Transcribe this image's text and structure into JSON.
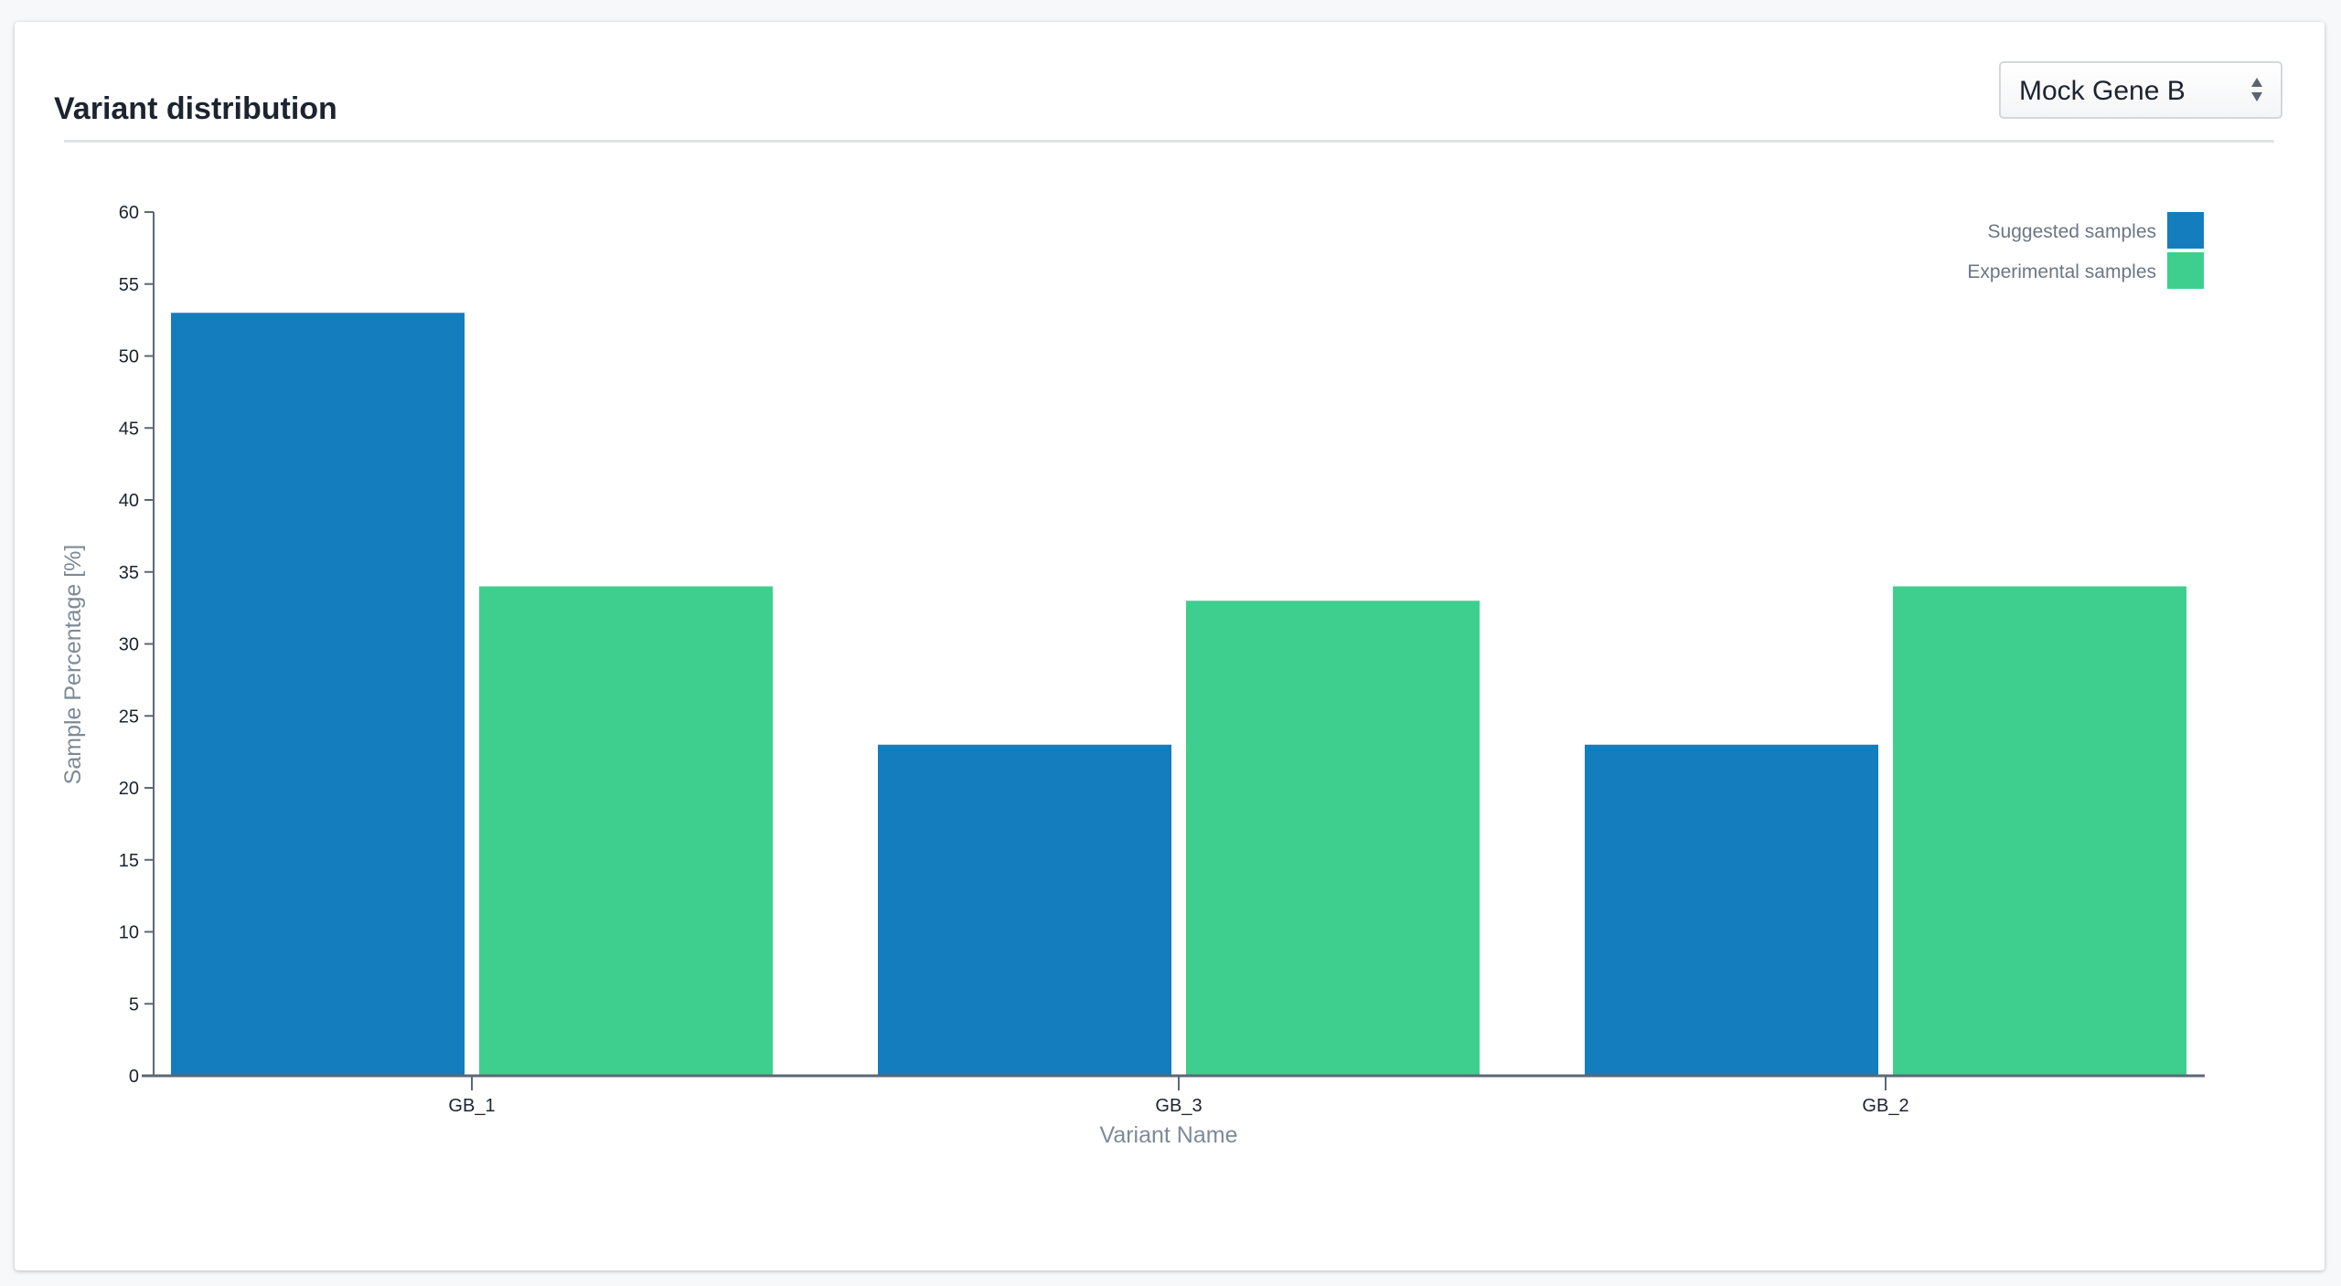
{
  "header": {
    "title": "Variant distribution"
  },
  "selector": {
    "value": "Mock Gene B",
    "icon": "sort-arrows-icon"
  },
  "chart_data": {
    "type": "bar",
    "title": "",
    "xlabel": "Variant Name",
    "ylabel": "Sample Percentage [%]",
    "ylim": [
      0,
      60
    ],
    "yticks": [
      "0",
      "5",
      "10",
      "15",
      "20",
      "25",
      "30",
      "35",
      "40",
      "45",
      "50",
      "55",
      "60"
    ],
    "categories": [
      "GB_1",
      "GB_3",
      "GB_2"
    ],
    "series": [
      {
        "name": "Suggested samples",
        "color": "#147dbe",
        "values": [
          53,
          23,
          23
        ]
      },
      {
        "name": "Experimental samples",
        "color": "#3ecf8e",
        "values": [
          34,
          33,
          34
        ]
      }
    ],
    "legend": "top-right",
    "grid": false
  }
}
